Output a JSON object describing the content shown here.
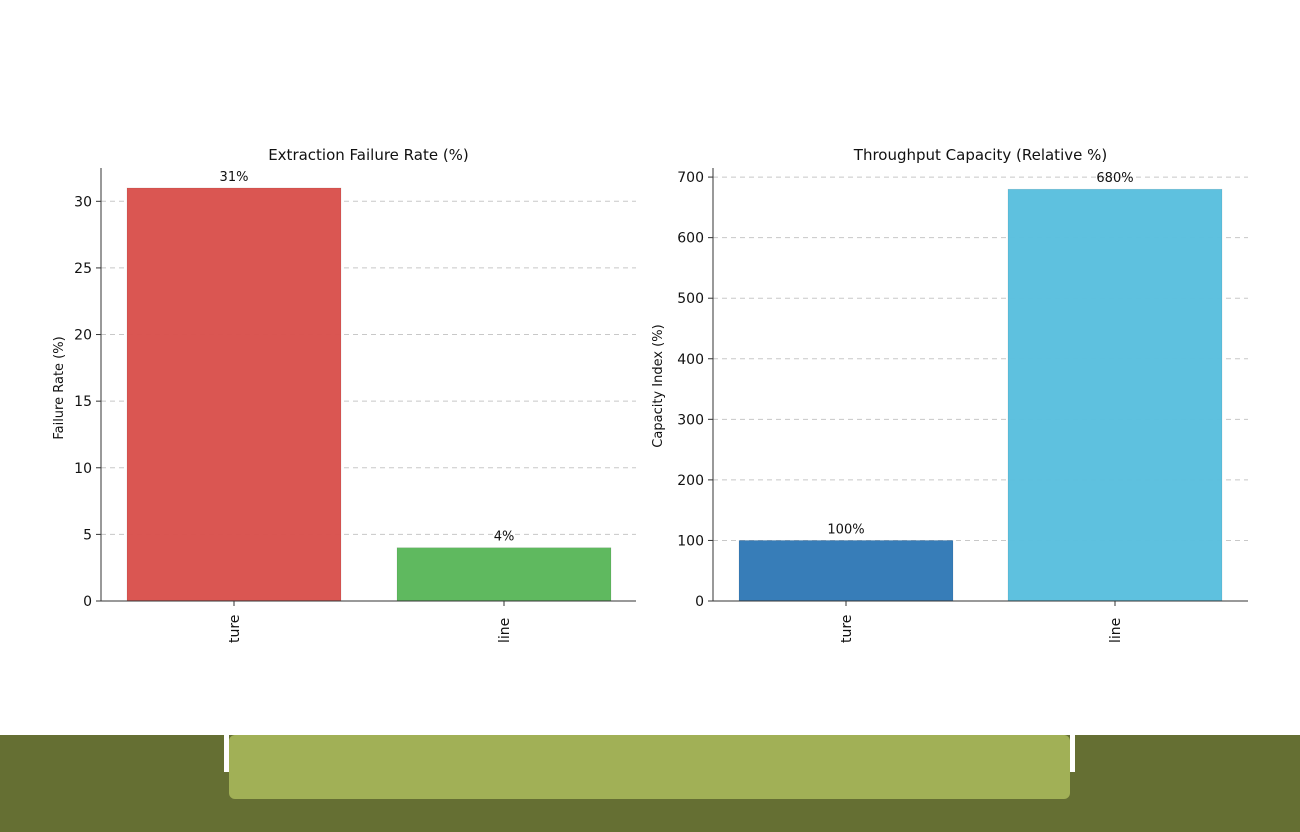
{
  "chart_data": [
    {
      "type": "bar",
      "title": "Extraction Failure Rate (%)",
      "ylabel": "Failure Rate (%)",
      "categories": [
        "ture",
        "line"
      ],
      "values": [
        31,
        4
      ],
      "value_labels": [
        "31%",
        "4%"
      ],
      "colors": [
        "#d9534f",
        "#5cb85c"
      ],
      "ylim": [
        0,
        32.5
      ],
      "yticks": [
        0,
        5,
        10,
        15,
        20,
        25,
        30
      ],
      "grid": true
    },
    {
      "type": "bar",
      "title": "Throughput Capacity (Relative %)",
      "ylabel": "Capacity Index (%)",
      "categories": [
        "ture",
        "line"
      ],
      "values": [
        100,
        680
      ],
      "value_labels": [
        "100%",
        "680%"
      ],
      "colors": [
        "#337ab7",
        "#5bc0de"
      ],
      "ylim": [
        0,
        715
      ],
      "yticks": [
        0,
        100,
        200,
        300,
        400,
        500,
        600,
        700
      ],
      "grid": true
    }
  ],
  "colors": {
    "bottom_bar": "#656f33",
    "bottom_pill": "#a1b056"
  }
}
